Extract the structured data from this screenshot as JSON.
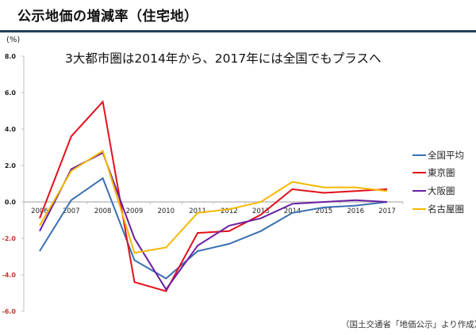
{
  "header": {
    "title": "公示地価の増減率（住宅地）",
    "rule_color": "#243e5a"
  },
  "chart_data": {
    "type": "line",
    "title": "公示地価の増減率（住宅地）",
    "subtitle": "3大都市圏は2014年から、2017年には全国でもプラスへ",
    "xlabel": "",
    "ylabel": "(%)",
    "ylim": [
      -6.0,
      8.0
    ],
    "yticks": [
      8.0,
      6.0,
      4.0,
      2.0,
      0.0,
      -2.0,
      -4.0,
      -6.0
    ],
    "ytick_labels": [
      "8.0",
      "6.0",
      "4.0",
      "2.0",
      "0.0",
      "-2.0",
      "-4.0",
      "-6.0"
    ],
    "negative_tick_color": "#c0392b",
    "positive_tick_color": "#222222",
    "grid": false,
    "legend_position": "right",
    "categories": [
      "2006",
      "2007",
      "2008",
      "2009",
      "2010",
      "2011",
      "2012",
      "2013",
      "2014",
      "2015",
      "2016",
      "2017"
    ],
    "series": [
      {
        "name": "全国平均",
        "color": "#3a6fb0",
        "values": [
          -2.7,
          0.1,
          1.3,
          -3.2,
          -4.2,
          -2.7,
          -2.3,
          -1.6,
          -0.6,
          -0.3,
          -0.2,
          0.0
        ]
      },
      {
        "name": "東京圏",
        "color": "#e3101d",
        "values": [
          -0.9,
          3.6,
          5.5,
          -4.4,
          -4.9,
          -1.7,
          -1.6,
          -0.7,
          0.7,
          0.5,
          0.6,
          0.7
        ]
      },
      {
        "name": "大阪圏",
        "color": "#6a1fa0",
        "values": [
          -1.6,
          1.8,
          2.7,
          -2.0,
          -4.8,
          -2.4,
          -1.3,
          -0.9,
          -0.1,
          0.0,
          0.1,
          0.0
        ]
      },
      {
        "name": "名古屋圏",
        "color": "#f5b800",
        "values": [
          -1.3,
          1.7,
          2.8,
          -2.8,
          -2.5,
          -0.6,
          -0.4,
          0.0,
          1.1,
          0.8,
          0.8,
          0.6
        ]
      }
    ],
    "source_note": "（国土交通省「地価公示」より作成）"
  }
}
